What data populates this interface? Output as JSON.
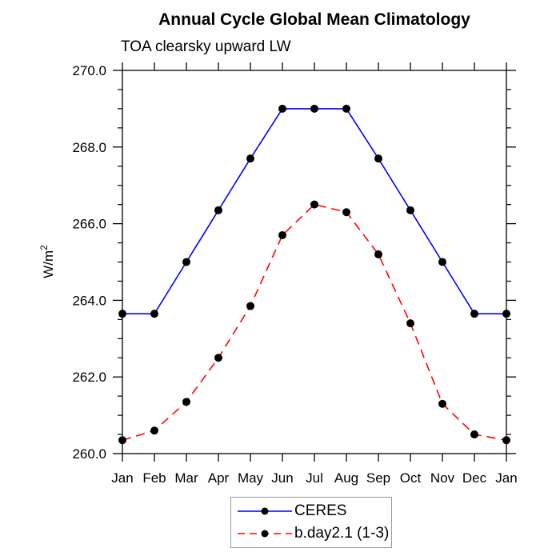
{
  "figure": {
    "title": "Annual Cycle Global Mean Climatology",
    "subtitle": "TOA clearsky upward LW",
    "ylabel_base": "W/m",
    "ylabel_exp": "2"
  },
  "chart_data": {
    "type": "line",
    "title": "Annual Cycle Global Mean Climatology",
    "subtitle": "TOA clearsky upward LW",
    "xlabel": "",
    "ylabel": "W/m²",
    "categories": [
      "Jan",
      "Feb",
      "Mar",
      "Apr",
      "May",
      "Jun",
      "Jul",
      "Aug",
      "Sep",
      "Oct",
      "Nov",
      "Dec",
      "Jan"
    ],
    "ylim": [
      260.0,
      270.0
    ],
    "ytick_major": 2.0,
    "ytick_minor": 0.5,
    "y_tick_labels": [
      "260.0",
      "262.0",
      "264.0",
      "266.0",
      "268.0",
      "270.0"
    ],
    "grid": false,
    "legend_position": "bottom-center",
    "frame_color": "#000000",
    "marker_color": "#000000",
    "series": [
      {
        "name": "CERES",
        "color": "#0000ff",
        "style": "solid",
        "marker": "circle",
        "values": [
          263.65,
          263.65,
          265.0,
          266.35,
          267.7,
          269.0,
          269.0,
          269.0,
          267.7,
          266.35,
          265.0,
          263.65,
          263.65
        ]
      },
      {
        "name": "b.day2.1 (1-3)",
        "color": "#ff0000",
        "style": "dashed",
        "marker": "circle",
        "values": [
          260.35,
          260.6,
          261.35,
          262.5,
          263.85,
          265.7,
          266.5,
          266.3,
          265.2,
          263.4,
          261.3,
          260.5,
          260.35
        ]
      }
    ]
  }
}
